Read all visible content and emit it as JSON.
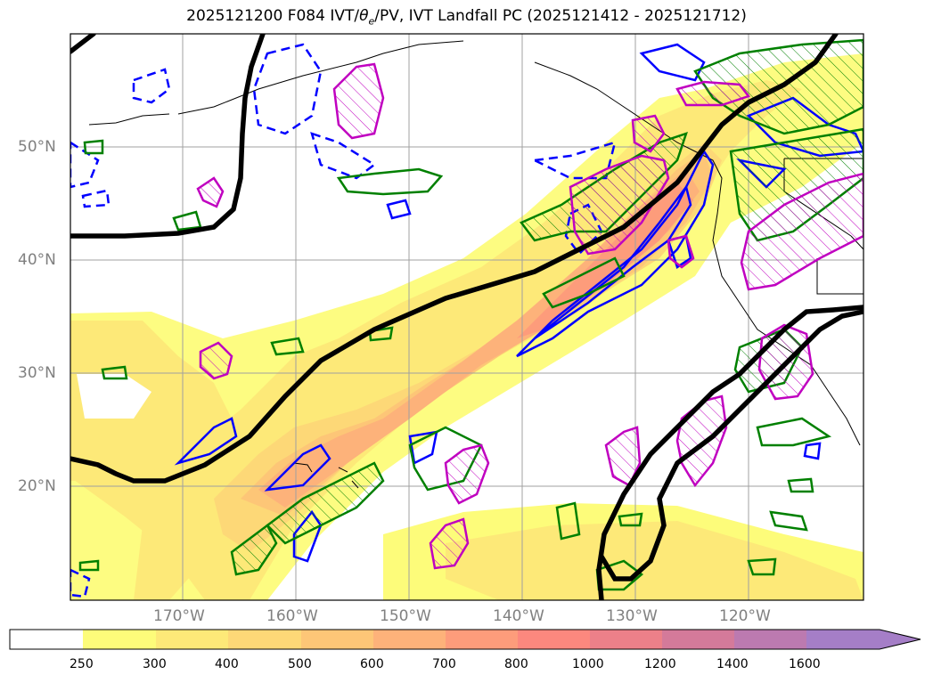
{
  "title_prefix": "2025121200 F084 IVT/",
  "title_theta": "θ",
  "title_sub": "e",
  "title_suffix": "/PV, IVT Landfall PC (2025121412 - 2025121712)",
  "lat_labels": [
    "50°N",
    "40°N",
    "30°N",
    "20°N"
  ],
  "lon_labels": [
    "170°W",
    "160°W",
    "150°W",
    "140°W",
    "130°W",
    "120°W"
  ],
  "colorbar": {
    "ticks": [
      "250",
      "300",
      "400",
      "500",
      "600",
      "700",
      "800",
      "1000",
      "1200",
      "1400",
      "1600"
    ],
    "colors": [
      "#ffffff",
      "#fdfc7a",
      "#fde978",
      "#fdd877",
      "#fdc677",
      "#fdb27a",
      "#fd9c7b",
      "#fc887e",
      "#ec8089",
      "#d47a9a",
      "#bc7ab0",
      "#a57ec7"
    ],
    "extend": "max"
  },
  "legend_colors": {
    "pv_contour": "#000000",
    "theta_e_dashed": "#0000ff",
    "green_contour": "#008000",
    "magenta_contour": "#c000c0"
  }
}
